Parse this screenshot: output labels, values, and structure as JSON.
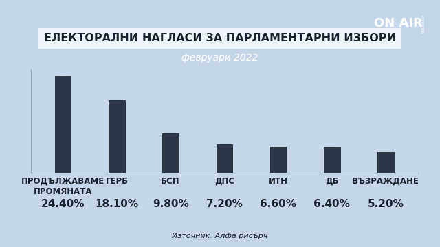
{
  "chart_data": {
    "type": "bar",
    "title": "ЕЛЕКТОРАЛНИ НАГЛАСИ ЗА ПАРЛАМЕНТАРНИ ИЗБОРИ",
    "subtitle": "февруари 2022",
    "categories": [
      "ПРОДЪЛЖАВАМЕ ПРОМЯНАТА",
      "ГЕРБ",
      "БСП",
      "ДПС",
      "ИТН",
      "ДБ",
      "ВЪЗРАЖДАНЕ"
    ],
    "values": [
      24.4,
      18.1,
      9.8,
      7.2,
      6.6,
      6.4,
      5.2
    ],
    "value_labels": [
      "24.40%",
      "18.10%",
      "9.80%",
      "7.20%",
      "6.60%",
      "6.40%",
      "5.20%"
    ],
    "data_labels": true,
    "color": "#2c3646",
    "ylim": [
      0,
      26
    ],
    "tick_labels": "x",
    "grid": false,
    "source": "Източник: Алфа рисърч",
    "annotations": [
      "ON AIR",
      "BULGARIA"
    ]
  }
}
